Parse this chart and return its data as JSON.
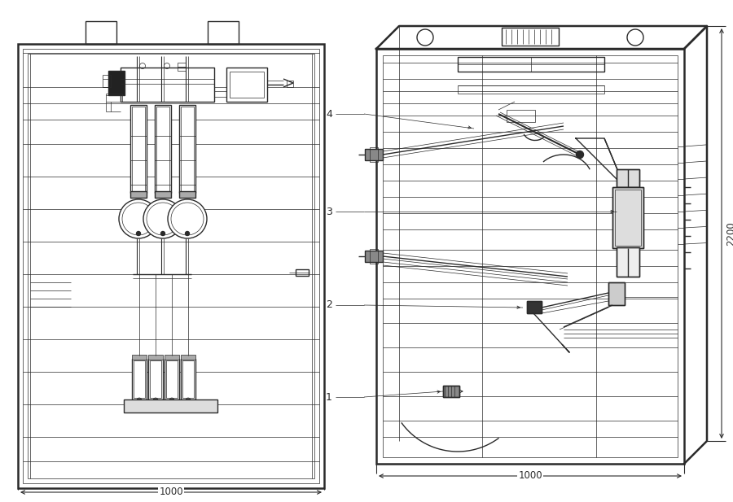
{
  "bg_color": "#ffffff",
  "lc": "#2a2a2a",
  "lc_gray": "#888888",
  "lc_light": "#cccccc",
  "lw_outer": 1.8,
  "lw_med": 1.0,
  "lw_thin": 0.5,
  "lw_dim": 0.8,
  "dim_w": "1000",
  "dim_h": "2200"
}
